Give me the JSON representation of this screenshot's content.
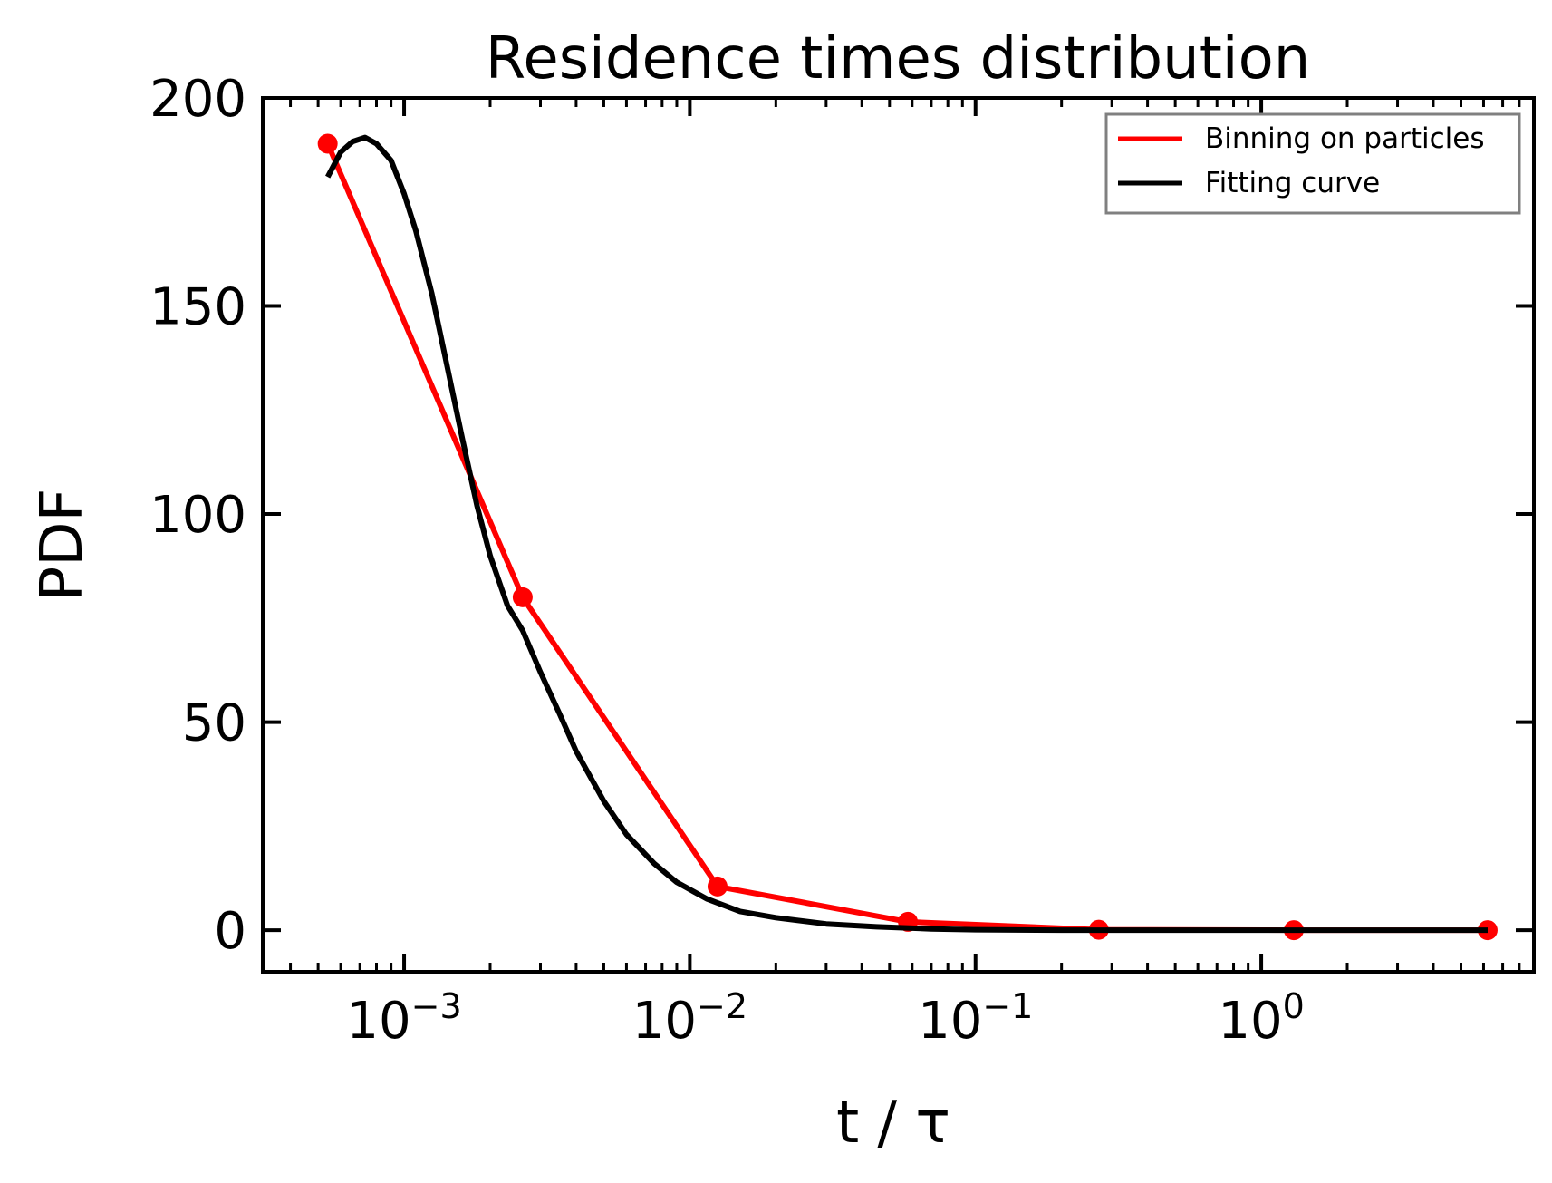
{
  "chart_data": {
    "type": "line",
    "title": "Residence times distribution",
    "xlabel": "t / τ",
    "ylabel": "PDF",
    "xscale": "log",
    "xlim": [
      0.00032,
      9.0
    ],
    "ylim": [
      -10,
      200
    ],
    "yticks": [
      0,
      50,
      100,
      150,
      200
    ],
    "xticks": [
      {
        "value": 0.001,
        "base": "10",
        "exponent": "−3"
      },
      {
        "value": 0.01,
        "base": "10",
        "exponent": "−2"
      },
      {
        "value": 0.1,
        "base": "10",
        "exponent": "−1"
      },
      {
        "value": 1,
        "base": "10",
        "exponent": "0"
      }
    ],
    "grid": false,
    "legend_position": "top-right",
    "series": [
      {
        "name": "Binning on particles",
        "color": "#ff0000",
        "style": "line-with-markers",
        "x": [
          0.00054,
          0.0026,
          0.0125,
          0.058,
          0.27,
          1.3,
          6.2
        ],
        "y": [
          189,
          80,
          10.5,
          2,
          0.1,
          0,
          0
        ]
      },
      {
        "name": "Fitting curve",
        "color": "#000000",
        "style": "line",
        "x": [
          0.00054,
          0.0006,
          0.00066,
          0.00073,
          0.0008,
          0.0009,
          0.001,
          0.0011,
          0.00125,
          0.0014,
          0.0016,
          0.0018,
          0.002,
          0.0023,
          0.0026,
          0.003,
          0.0035,
          0.004,
          0.005,
          0.006,
          0.0075,
          0.009,
          0.0115,
          0.015,
          0.02,
          0.03,
          0.045,
          0.07,
          0.1,
          0.2,
          0.5,
          1,
          3,
          6.2
        ],
        "y": [
          181,
          187,
          189.5,
          190.5,
          189,
          185,
          177,
          168,
          153,
          137,
          118,
          102,
          90,
          78,
          72,
          62,
          52,
          43,
          31,
          23,
          16,
          11.5,
          7.5,
          4.5,
          3,
          1.5,
          0.8,
          0.3,
          0.1,
          0,
          0,
          0,
          0,
          0
        ]
      }
    ]
  }
}
